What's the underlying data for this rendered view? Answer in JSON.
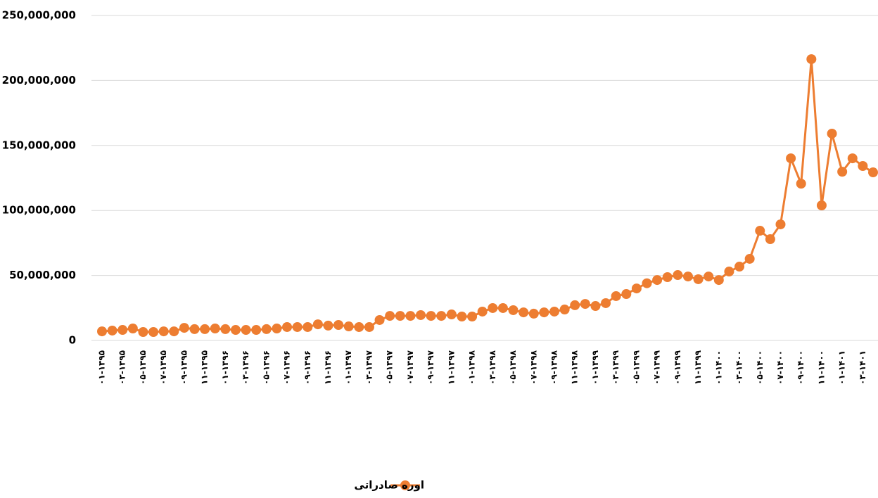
{
  "chart_data": {
    "type": "line",
    "categories": [
      "۰۱-۱۳۹۵",
      null,
      "۰۳-۱۳۹۵",
      null,
      "۰۵-۱۳۹۵",
      null,
      "۰۷-۱۳۹۵",
      null,
      "۰۹-۱۳۹۵",
      null,
      "۱۱-۱۳۹۵",
      null,
      "۰۱-۱۳۹۶",
      null,
      "۰۳-۱۳۹۶",
      null,
      "۰۵-۱۳۹۶",
      null,
      "۰۷-۱۳۹۶",
      null,
      "۰۹-۱۳۹۶",
      null,
      "۱۱-۱۳۹۶",
      null,
      "۰۱-۱۳۹۷",
      null,
      "۰۳-۱۳۹۷",
      null,
      "۰۵-۱۳۹۷",
      null,
      "۰۷-۱۳۹۷",
      null,
      "۰۹-۱۳۹۷",
      null,
      "۱۱-۱۳۹۷",
      null,
      "۰۱-۱۳۹۸",
      null,
      "۰۳-۱۳۹۸",
      null,
      "۰۵-۱۳۹۸",
      null,
      "۰۷-۱۳۹۸",
      null,
      "۰۹-۱۳۹۸",
      null,
      "۱۱-۱۳۹۸",
      null,
      "۰۱-۱۳۹۹",
      null,
      "۰۳-۱۳۹۹",
      null,
      "۰۵-۱۳۹۹",
      null,
      "۰۷-۱۳۹۹",
      null,
      "۰۹-۱۳۹۹",
      null,
      "۱۱-۱۳۹۹",
      null,
      "۰۱-۱۴۰۰",
      null,
      "۰۳-۱۴۰۰",
      null,
      "۰۵-۱۴۰۰",
      null,
      "۰۷-۱۴۰۰",
      null,
      "۰۹-۱۴۰۰",
      null,
      "۱۱-۱۴۰۰",
      null,
      "۰۱-۱۴۰۱",
      null,
      "۰۳-۱۴۰۱",
      null
    ],
    "series": [
      {
        "name": "اوره صادراتی",
        "color": "#ED7D31",
        "values": [
          7000000,
          7600000,
          8100000,
          9200000,
          6500000,
          6500000,
          7000000,
          7000000,
          9700000,
          8700000,
          8700000,
          9200000,
          8700000,
          8100000,
          8100000,
          8100000,
          8700000,
          9200000,
          10300000,
          10300000,
          10300000,
          12400000,
          11400000,
          11900000,
          10800000,
          10300000,
          10300000,
          15700000,
          18900000,
          18900000,
          18900000,
          19500000,
          18900000,
          18900000,
          20000000,
          18400000,
          18400000,
          22200000,
          24900000,
          24900000,
          23300000,
          21600000,
          20600000,
          21600000,
          22200000,
          23800000,
          27100000,
          28100000,
          26500000,
          28700000,
          34100000,
          35700000,
          40000000,
          44000000,
          46500000,
          48700000,
          50300000,
          49200000,
          47100000,
          49200000,
          46500000,
          53000000,
          56800000,
          62800000,
          84400000,
          77900000,
          89300000,
          140100000,
          120600000,
          216400000,
          103900000,
          159100000,
          129800000,
          140100000,
          134200000,
          129300000
        ]
      }
    ],
    "ylim": [
      0,
      250000000
    ],
    "yticks": [
      0,
      {
        "value": 50000000,
        "label": "50,000,000"
      },
      {
        "value": 100000000,
        "label": "100,000,000"
      },
      {
        "value": 150000000,
        "label": "150,000,000"
      },
      {
        "value": 200000000,
        "label": "200,000,000"
      },
      {
        "value": 250000000,
        "label": "250,000,000"
      }
    ],
    "grid": true,
    "legend": "bottom"
  }
}
